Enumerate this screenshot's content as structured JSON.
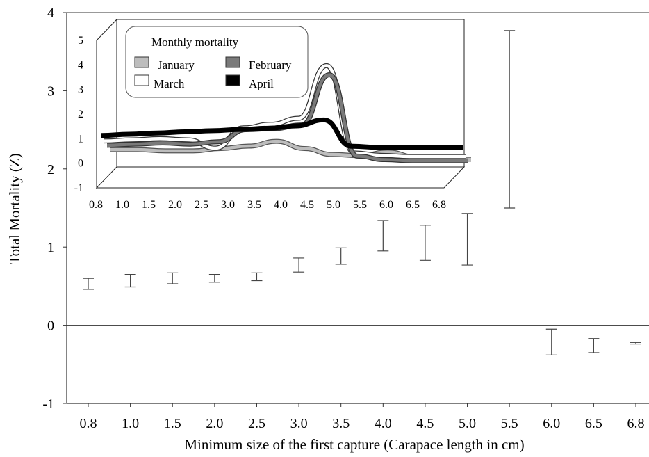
{
  "chart_data": [
    {
      "type": "errorbar",
      "title": "",
      "xlabel": "Minimum size of the first capture (Carapace length in cm)",
      "ylabel": "Total Mortality (Z)",
      "ylim": [
        -1,
        4
      ],
      "yticks": [
        "-1",
        "0",
        "1",
        "2",
        "3",
        "4"
      ],
      "categories": [
        "0.8",
        "1.0",
        "1.5",
        "2.0",
        "2.5",
        "3.0",
        "3.5",
        "4.0",
        "4.5",
        "5.0",
        "5.5",
        "6.0",
        "6.5",
        "6.8"
      ],
      "intervals": [
        {
          "x": "0.8",
          "low": 0.46,
          "high": 0.6
        },
        {
          "x": "1.0",
          "low": 0.49,
          "high": 0.65
        },
        {
          "x": "1.5",
          "low": 0.53,
          "high": 0.67
        },
        {
          "x": "2.0",
          "low": 0.55,
          "high": 0.65
        },
        {
          "x": "2.5",
          "low": 0.57,
          "high": 0.67
        },
        {
          "x": "3.0",
          "low": 0.68,
          "high": 0.86
        },
        {
          "x": "3.5",
          "low": 0.78,
          "high": 0.99
        },
        {
          "x": "4.0",
          "low": 0.95,
          "high": 1.34
        },
        {
          "x": "4.5",
          "low": 0.83,
          "high": 1.28
        },
        {
          "x": "5.0",
          "low": 0.77,
          "high": 1.43
        },
        {
          "x": "5.5",
          "low": 1.5,
          "high": 3.77
        },
        {
          "x": "6.0",
          "low": -0.38,
          "high": -0.05
        },
        {
          "x": "6.5",
          "low": -0.35,
          "high": -0.17
        },
        {
          "x": "6.8",
          "low": -0.24,
          "high": -0.22
        }
      ],
      "reference_line": 0,
      "grid": false
    },
    {
      "type": "line",
      "title": "",
      "legend_title": "Monthly mortality",
      "legend_position": "top-left",
      "style": "3d",
      "ylim": [
        -1,
        5
      ],
      "yticks": [
        "-1",
        "0",
        "1",
        "2",
        "3",
        "4",
        "5"
      ],
      "categories": [
        "0.8",
        "1.0",
        "1.5",
        "2.0",
        "2.5",
        "3.0",
        "3.5",
        "4.0",
        "4.5",
        "5.0",
        "5.5",
        "6.0",
        "6.5",
        "6.8"
      ],
      "series": [
        {
          "name": "January",
          "color": "#bdbdbd",
          "outline": "#555555",
          "values": [
            0.85,
            0.85,
            0.8,
            0.8,
            0.9,
            1.0,
            1.2,
            0.9,
            0.65,
            0.6,
            0.75,
            0.55,
            0.45,
            0.45
          ]
        },
        {
          "name": "February",
          "color": "#7a7a7a",
          "outline": "#333333",
          "values": [
            0.95,
            1.0,
            1.05,
            1.0,
            1.1,
            1.6,
            1.65,
            1.8,
            3.9,
            0.5,
            0.35,
            0.3,
            0.3,
            0.3
          ]
        },
        {
          "name": "March",
          "color": "#ffffff",
          "outline": "#333333",
          "values": [
            1.05,
            1.1,
            1.15,
            1.1,
            0.75,
            1.6,
            1.75,
            2.0,
            4.2,
            0.55,
            0.45,
            0.4,
            0.4,
            0.4
          ]
        },
        {
          "name": "April",
          "color": "#000000",
          "outline": "#000000",
          "values": [
            1.2,
            1.25,
            1.3,
            1.35,
            1.4,
            1.45,
            1.5,
            1.6,
            1.85,
            0.75,
            0.7,
            0.7,
            0.7,
            0.7
          ]
        }
      ]
    }
  ]
}
